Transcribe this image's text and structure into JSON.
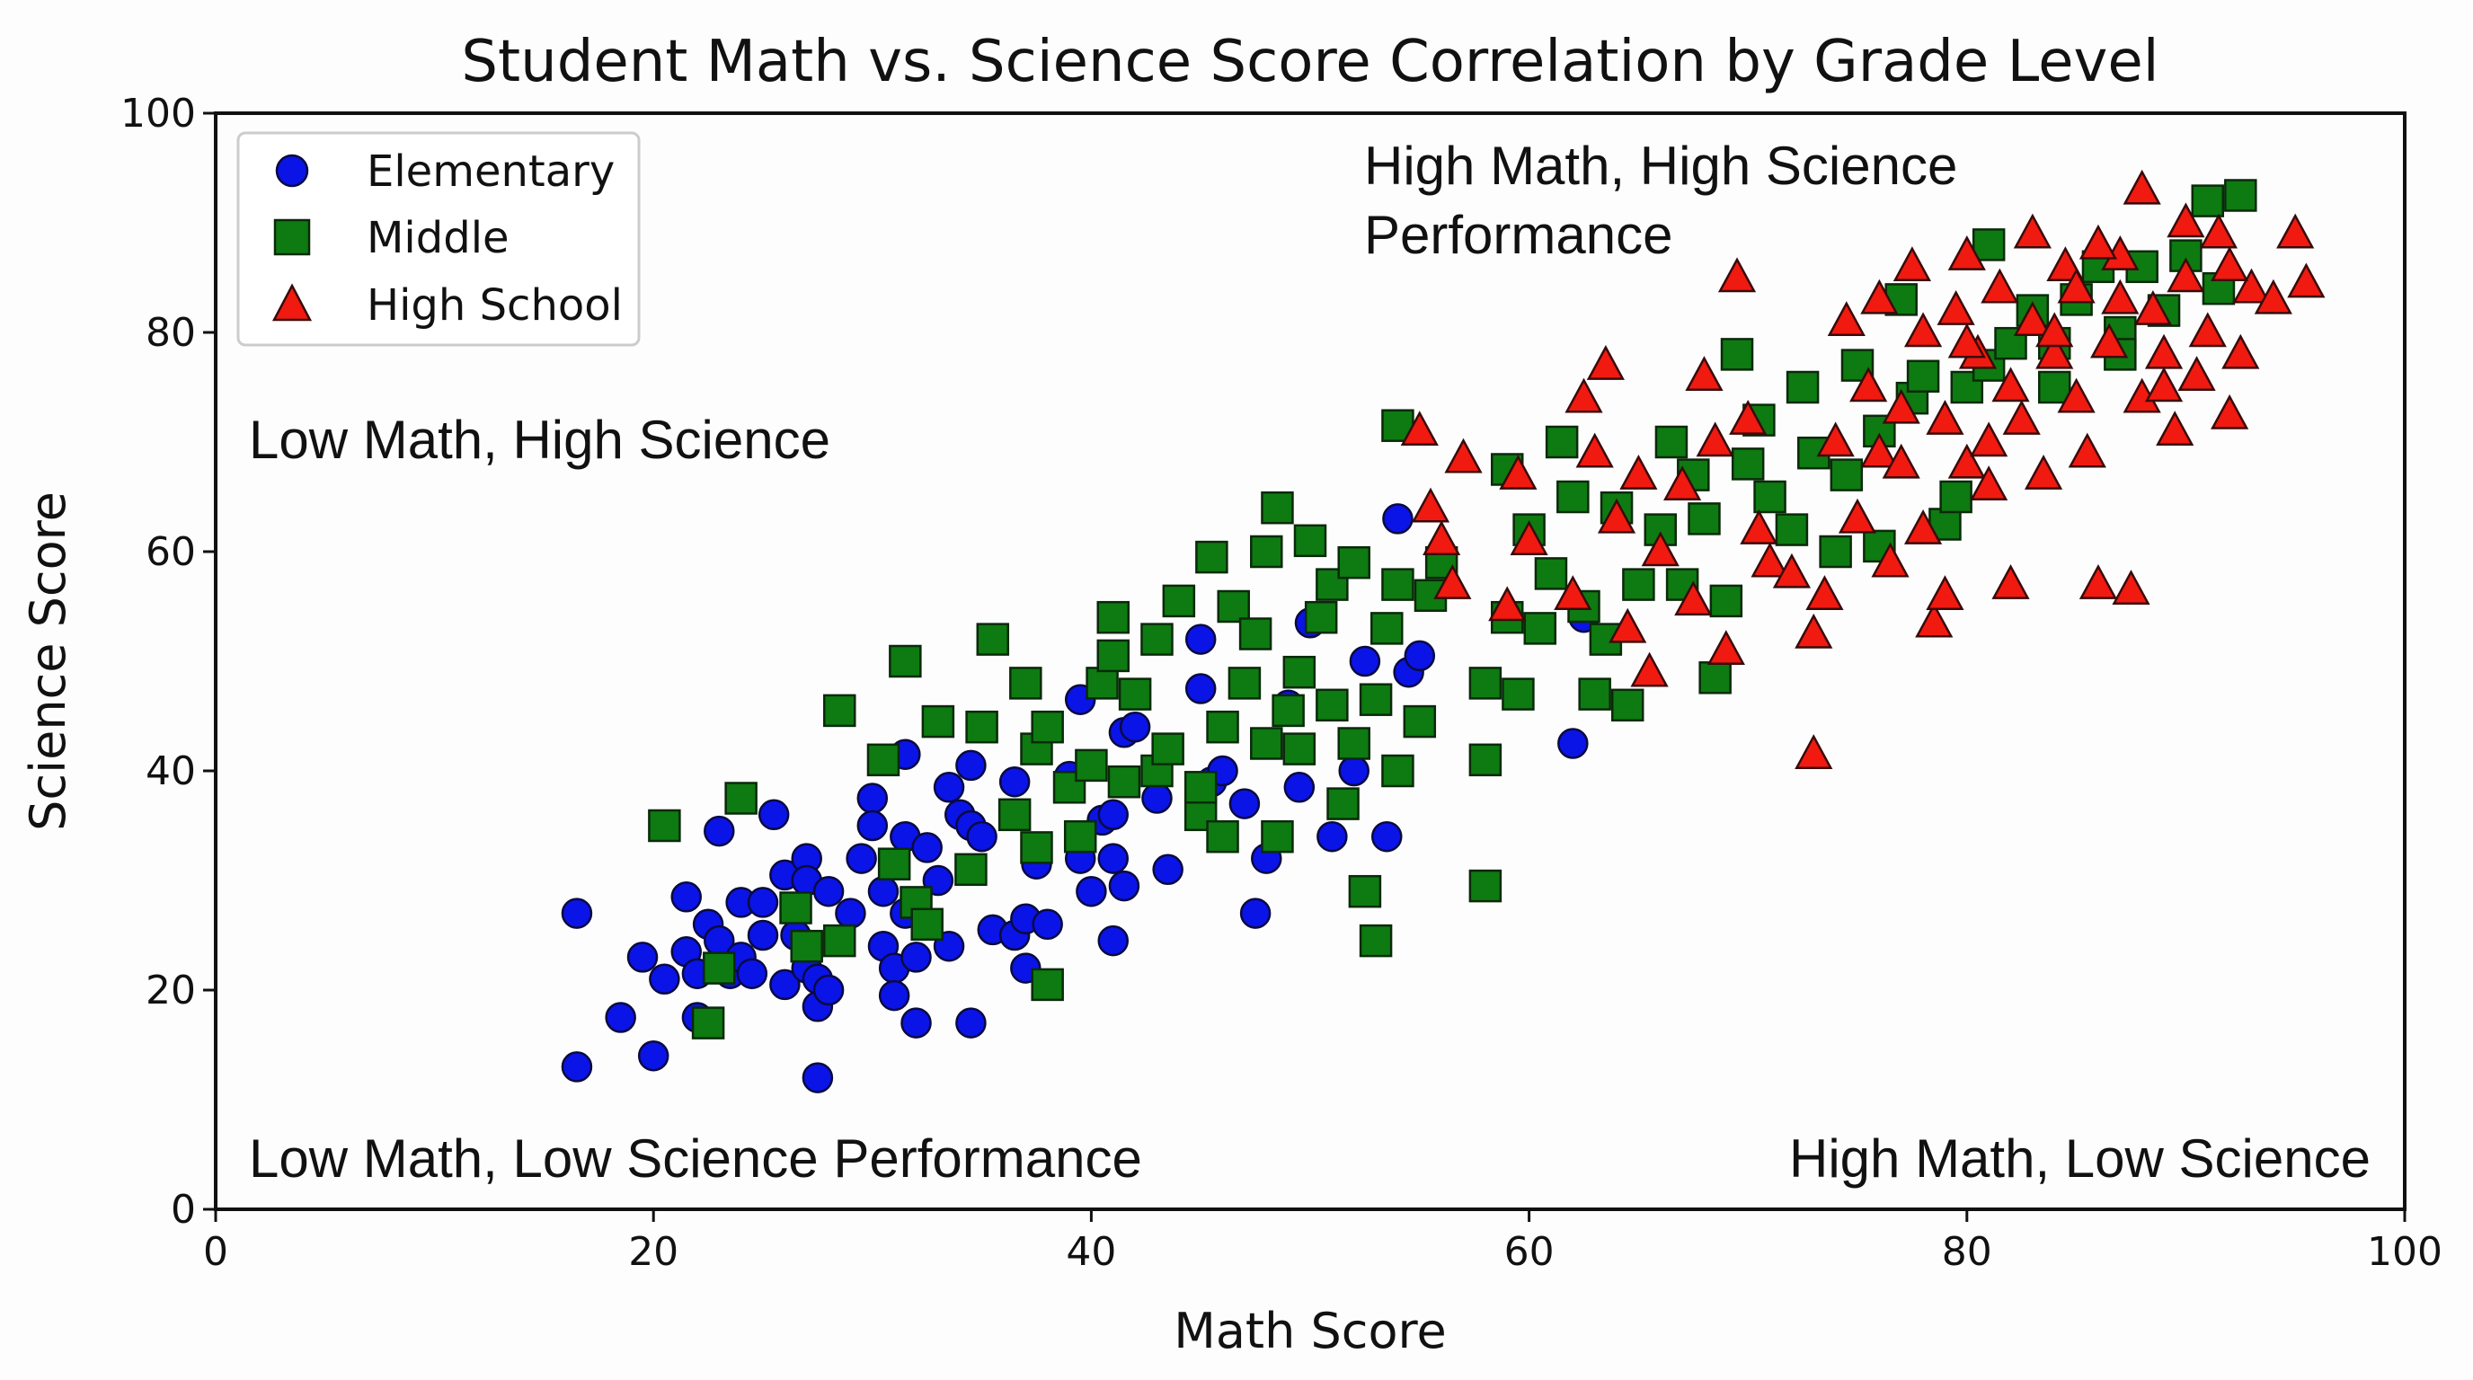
{
  "chart_data": {
    "type": "scatter",
    "title": "Student Math vs. Science Score Correlation by Grade Level",
    "xlabel": "Math Score",
    "ylabel": "Science Score",
    "xlim": [
      0,
      100
    ],
    "ylim": [
      0,
      100
    ],
    "xticks": [
      0,
      20,
      40,
      60,
      80,
      100
    ],
    "yticks": [
      0,
      20,
      40,
      60,
      80,
      100
    ],
    "grid": false,
    "legend_placement": "top-left",
    "annotations": {
      "top_right": [
        "High Math, High Science",
        "Performance"
      ],
      "top_left": "Low Math, High Science",
      "bottom_left": "Low Math, Low Science Performance",
      "bottom_right": "High Math, Low Science"
    },
    "series": [
      {
        "name": "Elementary",
        "marker": "circle",
        "color": "#0a14e6",
        "edge": "#0a0a40",
        "points": [
          [
            16.5,
            27
          ],
          [
            16.5,
            13
          ],
          [
            18.5,
            17.5
          ],
          [
            19.5,
            23
          ],
          [
            20,
            14
          ],
          [
            20.5,
            21
          ],
          [
            21.5,
            28.5
          ],
          [
            21.5,
            23.5
          ],
          [
            22,
            17.5
          ],
          [
            22,
            21.5
          ],
          [
            22.5,
            26
          ],
          [
            23,
            24.5
          ],
          [
            23,
            34.5
          ],
          [
            23.5,
            21.5
          ],
          [
            24,
            28
          ],
          [
            24,
            23
          ],
          [
            24.5,
            21.5
          ],
          [
            25,
            25
          ],
          [
            25,
            28
          ],
          [
            25.5,
            36
          ],
          [
            26,
            30.5
          ],
          [
            26,
            20.5
          ],
          [
            26.5,
            25
          ],
          [
            27,
            22
          ],
          [
            27,
            32
          ],
          [
            27,
            30
          ],
          [
            27.5,
            12
          ],
          [
            27.5,
            21
          ],
          [
            27.5,
            18.5
          ],
          [
            28,
            20
          ],
          [
            28,
            29
          ],
          [
            29,
            27
          ],
          [
            29.5,
            32
          ],
          [
            30,
            37.5
          ],
          [
            30,
            35
          ],
          [
            30.5,
            24
          ],
          [
            30.5,
            29
          ],
          [
            31,
            22
          ],
          [
            31,
            19.5
          ],
          [
            31.5,
            34
          ],
          [
            31.5,
            27
          ],
          [
            31.5,
            41.5
          ],
          [
            32,
            23
          ],
          [
            32,
            17
          ],
          [
            32.5,
            33
          ],
          [
            33,
            30
          ],
          [
            33.5,
            38.5
          ],
          [
            33.5,
            24
          ],
          [
            34,
            36
          ],
          [
            34.5,
            40.5
          ],
          [
            34.5,
            35
          ],
          [
            34.5,
            17
          ],
          [
            35,
            34
          ],
          [
            35.5,
            25.5
          ],
          [
            36.5,
            25
          ],
          [
            36.5,
            39
          ],
          [
            37,
            22
          ],
          [
            37,
            26.5
          ],
          [
            37.5,
            31.5
          ],
          [
            38,
            26
          ],
          [
            39,
            39.5
          ],
          [
            39.5,
            46.5
          ],
          [
            39.5,
            32
          ],
          [
            40,
            29
          ],
          [
            40.5,
            35.5
          ],
          [
            41,
            24.5
          ],
          [
            41,
            32
          ],
          [
            41,
            36
          ],
          [
            41.5,
            29.5
          ],
          [
            41.5,
            43.5
          ],
          [
            42,
            44
          ],
          [
            43,
            37.5
          ],
          [
            43.5,
            31
          ],
          [
            45,
            52
          ],
          [
            45,
            47.5
          ],
          [
            45.5,
            39
          ],
          [
            46,
            40
          ],
          [
            47,
            37
          ],
          [
            47.5,
            27
          ],
          [
            48,
            32
          ],
          [
            49,
            46
          ],
          [
            49.5,
            38.5
          ],
          [
            50,
            53.5
          ],
          [
            51,
            34
          ],
          [
            52,
            40
          ],
          [
            52.5,
            50
          ],
          [
            53.5,
            34
          ],
          [
            54,
            63
          ],
          [
            54.5,
            49
          ],
          [
            55,
            50.5
          ],
          [
            62,
            42.5
          ],
          [
            62.5,
            54
          ]
        ]
      },
      {
        "name": "Middle",
        "marker": "square",
        "color": "#0e7a12",
        "edge": "#0a2a0a",
        "points": [
          [
            20.5,
            35
          ],
          [
            22.5,
            17
          ],
          [
            23,
            22
          ],
          [
            24,
            37.5
          ],
          [
            26.5,
            27.5
          ],
          [
            27,
            24
          ],
          [
            28.5,
            24.5
          ],
          [
            28.5,
            45.5
          ],
          [
            30.5,
            41
          ],
          [
            31,
            31.5
          ],
          [
            31.5,
            50
          ],
          [
            32,
            28
          ],
          [
            32.5,
            26
          ],
          [
            33,
            44.5
          ],
          [
            34.5,
            31
          ],
          [
            35,
            44
          ],
          [
            35.5,
            52
          ],
          [
            36.5,
            36
          ],
          [
            37,
            48
          ],
          [
            37.5,
            42
          ],
          [
            37.5,
            33
          ],
          [
            38,
            20.5
          ],
          [
            38,
            44
          ],
          [
            39,
            38.5
          ],
          [
            39.5,
            34
          ],
          [
            40,
            40.5
          ],
          [
            40.5,
            48
          ],
          [
            41,
            54
          ],
          [
            41,
            50.5
          ],
          [
            41.5,
            39
          ],
          [
            42,
            47
          ],
          [
            43,
            40
          ],
          [
            43,
            52
          ],
          [
            43.5,
            42
          ],
          [
            44,
            55.5
          ],
          [
            45,
            36
          ],
          [
            45,
            38.5
          ],
          [
            45.5,
            59.5
          ],
          [
            46,
            34
          ],
          [
            46,
            44
          ],
          [
            46.5,
            55
          ],
          [
            47,
            48
          ],
          [
            47.5,
            52.5
          ],
          [
            48,
            42.5
          ],
          [
            48,
            60
          ],
          [
            48.5,
            34
          ],
          [
            48.5,
            64
          ],
          [
            49,
            45.5
          ],
          [
            49.5,
            49
          ],
          [
            49.5,
            42
          ],
          [
            50,
            61
          ],
          [
            50.5,
            54
          ],
          [
            51,
            57
          ],
          [
            51,
            46
          ],
          [
            51.5,
            37
          ],
          [
            52,
            59
          ],
          [
            52,
            42.5
          ],
          [
            52.5,
            29
          ],
          [
            53,
            24.5
          ],
          [
            53,
            46.5
          ],
          [
            53.5,
            53
          ],
          [
            54,
            71.5
          ],
          [
            54,
            40
          ],
          [
            54,
            57
          ],
          [
            55,
            44.5
          ],
          [
            55.5,
            56
          ],
          [
            56,
            59
          ],
          [
            58,
            29.5
          ],
          [
            58,
            41
          ],
          [
            58,
            48
          ],
          [
            59,
            54
          ],
          [
            59,
            67.5
          ],
          [
            59.5,
            47
          ],
          [
            60,
            62
          ],
          [
            60.5,
            53
          ],
          [
            61,
            58
          ],
          [
            61.5,
            70
          ],
          [
            62,
            65
          ],
          [
            62.5,
            55
          ],
          [
            63,
            47
          ],
          [
            63.5,
            52
          ],
          [
            64,
            64
          ],
          [
            64.5,
            46
          ],
          [
            65,
            57
          ],
          [
            66,
            62
          ],
          [
            66.5,
            70
          ],
          [
            67,
            57
          ],
          [
            67.5,
            67
          ],
          [
            68,
            63
          ],
          [
            68.5,
            48.5
          ],
          [
            69,
            55.5
          ],
          [
            69.5,
            78
          ],
          [
            70,
            68
          ],
          [
            70.5,
            72
          ],
          [
            71,
            65
          ],
          [
            72,
            62
          ],
          [
            72.5,
            75
          ],
          [
            73,
            69
          ],
          [
            74,
            60
          ],
          [
            74.5,
            67
          ],
          [
            75,
            77
          ],
          [
            76,
            71
          ],
          [
            76,
            60.5
          ],
          [
            77,
            83
          ],
          [
            77.5,
            74
          ],
          [
            78,
            76
          ],
          [
            79,
            62.5
          ],
          [
            79.5,
            65
          ],
          [
            80,
            75
          ],
          [
            81,
            88
          ],
          [
            81,
            77
          ],
          [
            82,
            79
          ],
          [
            83,
            82
          ],
          [
            84,
            79
          ],
          [
            85,
            83
          ],
          [
            86,
            86
          ],
          [
            87,
            80
          ],
          [
            88,
            86
          ],
          [
            89,
            82
          ],
          [
            90,
            87
          ],
          [
            91,
            92
          ],
          [
            91.5,
            84
          ],
          [
            92.5,
            92.5
          ],
          [
            87,
            78
          ],
          [
            84,
            75
          ]
        ]
      },
      {
        "name": "High School",
        "marker": "triangle",
        "color": "#f01a10",
        "edge": "#3a0a0a",
        "points": [
          [
            55,
            71
          ],
          [
            55.5,
            64
          ],
          [
            56,
            61
          ],
          [
            56.5,
            57
          ],
          [
            57,
            68.5
          ],
          [
            59,
            55
          ],
          [
            59.5,
            67
          ],
          [
            60,
            61
          ],
          [
            62,
            56
          ],
          [
            62.5,
            74
          ],
          [
            63,
            69
          ],
          [
            63.5,
            77
          ],
          [
            64,
            63
          ],
          [
            64.5,
            53
          ],
          [
            65,
            67
          ],
          [
            65.5,
            49
          ],
          [
            66,
            60
          ],
          [
            67,
            66
          ],
          [
            67.5,
            55.5
          ],
          [
            68,
            76
          ],
          [
            68.5,
            70
          ],
          [
            69,
            51
          ],
          [
            69.5,
            85
          ],
          [
            70,
            72
          ],
          [
            70.5,
            62
          ],
          [
            71,
            59
          ],
          [
            72,
            58
          ],
          [
            73,
            41.5
          ],
          [
            73,
            52.5
          ],
          [
            73.5,
            56
          ],
          [
            74,
            70
          ],
          [
            74.5,
            81
          ],
          [
            75,
            63
          ],
          [
            75.5,
            75
          ],
          [
            76,
            69
          ],
          [
            76.5,
            59
          ],
          [
            77,
            73
          ],
          [
            77.5,
            86
          ],
          [
            78,
            62
          ],
          [
            78.5,
            53.5
          ],
          [
            79,
            56
          ],
          [
            79,
            72
          ],
          [
            79.5,
            82
          ],
          [
            80,
            68
          ],
          [
            80,
            87
          ],
          [
            80.5,
            78
          ],
          [
            81,
            66
          ],
          [
            81.5,
            84
          ],
          [
            82,
            57
          ],
          [
            82.5,
            72
          ],
          [
            83,
            81
          ],
          [
            83.5,
            67
          ],
          [
            84,
            78
          ],
          [
            84.5,
            86
          ],
          [
            85,
            74
          ],
          [
            85.5,
            69
          ],
          [
            86,
            57
          ],
          [
            86.5,
            79
          ],
          [
            87,
            87
          ],
          [
            87.5,
            56.5
          ],
          [
            88,
            74
          ],
          [
            88.5,
            82
          ],
          [
            89,
            78
          ],
          [
            89.5,
            71
          ],
          [
            90,
            85
          ],
          [
            90.5,
            76
          ],
          [
            91,
            80
          ],
          [
            91.5,
            89
          ],
          [
            92,
            72.5
          ],
          [
            92.5,
            78
          ],
          [
            93,
            84
          ],
          [
            94,
            83
          ],
          [
            95,
            89
          ],
          [
            95.5,
            84.5
          ],
          [
            88,
            93
          ],
          [
            86,
            88
          ],
          [
            84,
            80
          ],
          [
            82,
            75
          ],
          [
            80,
            79
          ],
          [
            83,
            89
          ],
          [
            85,
            84
          ],
          [
            90,
            90
          ],
          [
            78,
            80
          ],
          [
            76,
            83
          ],
          [
            81,
            70
          ],
          [
            87,
            83
          ],
          [
            92,
            86
          ],
          [
            89,
            75
          ],
          [
            77,
            68
          ]
        ]
      }
    ]
  }
}
